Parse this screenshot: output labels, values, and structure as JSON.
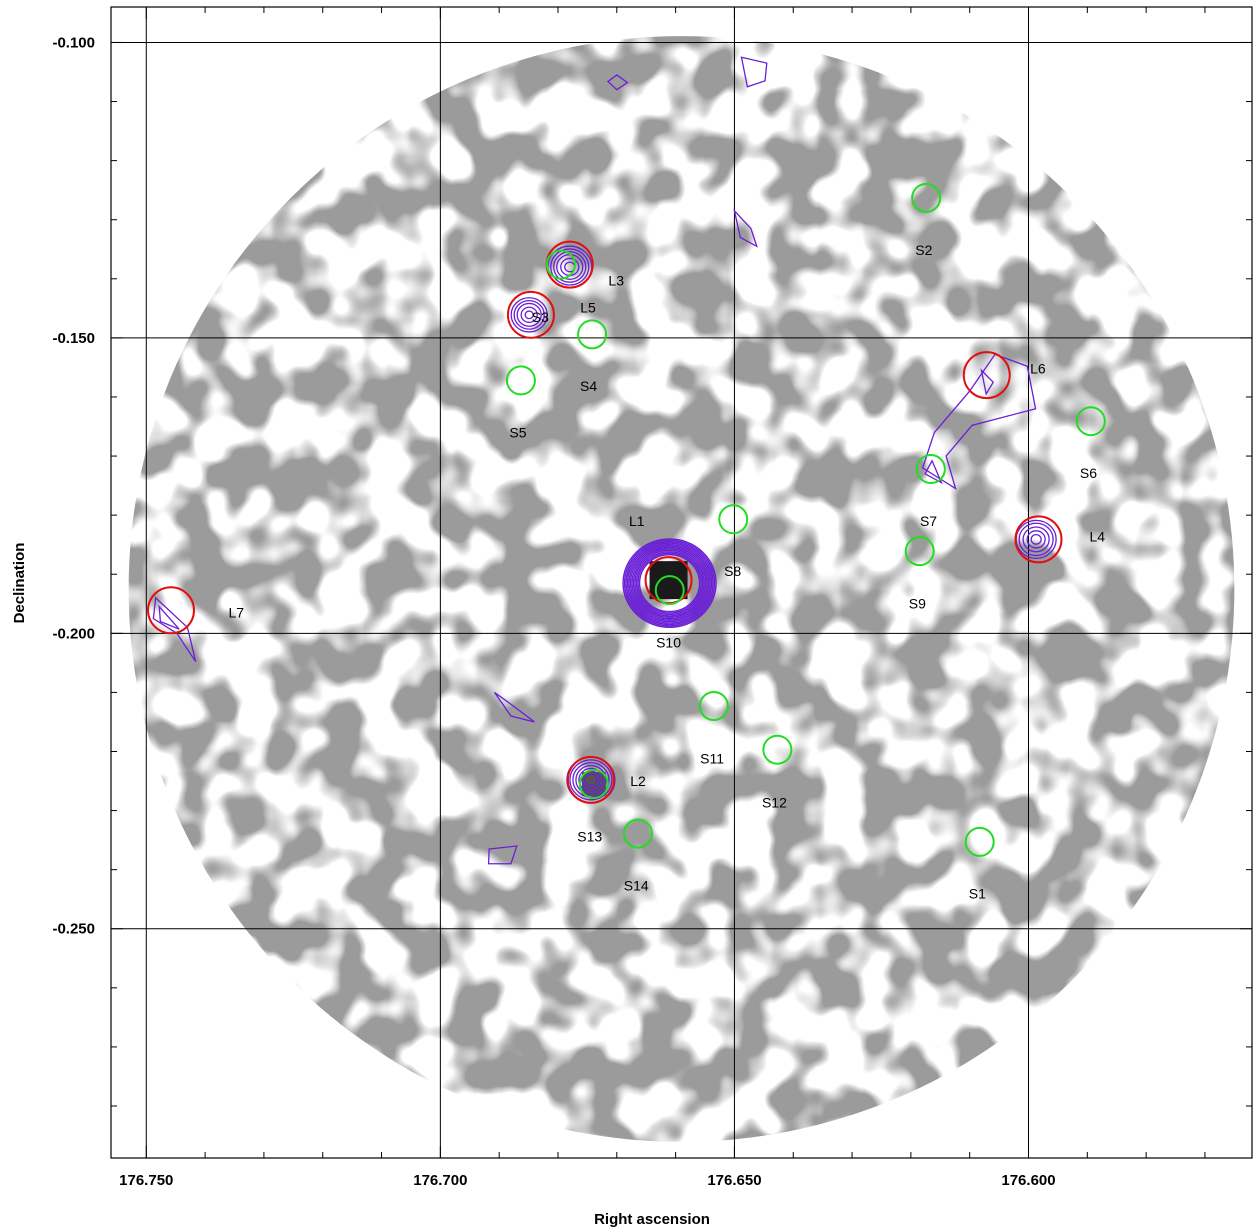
{
  "chart_data": {
    "type": "scatter",
    "title": "",
    "xlabel": "Right ascension",
    "ylabel": "Declination",
    "xlim": [
      176.756,
      176.562
    ],
    "ylim": [
      -0.2888,
      -0.094
    ],
    "grid": true,
    "x_ticks": [
      176.75,
      176.7,
      176.65,
      176.6
    ],
    "x_tick_labels": [
      "176.750",
      "176.700",
      "176.650",
      "176.600"
    ],
    "y_ticks": [
      -0.1,
      -0.15,
      -0.2,
      -0.25
    ],
    "y_tick_labels": [
      "-0.100",
      "-0.150",
      "-0.200",
      "-0.250"
    ],
    "field_circle": {
      "center_ra": 176.659,
      "center_dec": -0.1925,
      "radius_deg": 0.094
    },
    "colors": {
      "contour": "#6a1fd6",
      "l_sources": "#e01010",
      "s_sources": "#22dd22",
      "background": "#ffffff",
      "noise": "#7a7a7a"
    },
    "series": [
      {
        "name": "L",
        "color": "#e01010",
        "points": [
          {
            "label": "L1",
            "ra": 176.6612,
            "dec": -0.191,
            "label_ra": 176.6666,
            "label_dec": -0.1818
          },
          {
            "label": "L2",
            "ra": 176.6744,
            "dec": -0.2248,
            "label_ra": 176.6664,
            "label_dec": -0.2258
          },
          {
            "label": "L3",
            "ra": 176.678,
            "dec": -0.1376,
            "label_ra": 176.6701,
            "label_dec": -0.1411
          },
          {
            "label": "L4",
            "ra": 176.5983,
            "dec": -0.1841,
            "label_ra": 176.5883,
            "label_dec": -0.1845
          },
          {
            "label": "L5",
            "ra": 176.6846,
            "dec": -0.1461,
            "label_ra": 176.6749,
            "label_dec": -0.1457
          },
          {
            "label": "L6",
            "ra": 176.6071,
            "dec": -0.1563,
            "label_ra": 176.5984,
            "label_dec": -0.156
          },
          {
            "label": "L7",
            "ra": 176.7458,
            "dec": -0.1961,
            "label_ra": 176.7347,
            "label_dec": -0.1973
          }
        ]
      },
      {
        "name": "S",
        "color": "#22dd22",
        "points": [
          {
            "label": "S1",
            "ra": 176.6083,
            "dec": -0.2353,
            "label_ra": 176.6087,
            "label_dec": -0.2449
          },
          {
            "label": "S2",
            "ra": 176.6174,
            "dec": -0.1263,
            "label_ra": 176.6178,
            "label_dec": -0.136
          },
          {
            "label": "S3",
            "ra": 176.6795,
            "dec": -0.1376,
            "label_ra": 176.683,
            "label_dec": -0.1473
          },
          {
            "label": "S4",
            "ra": 176.6742,
            "dec": -0.1494,
            "label_ra": 176.6748,
            "label_dec": -0.159
          },
          {
            "label": "S5",
            "ra": 176.6863,
            "dec": -0.1572,
            "label_ra": 176.6868,
            "label_dec": -0.1669
          },
          {
            "label": "S6",
            "ra": 176.5894,
            "dec": -0.1641,
            "label_ra": 176.5898,
            "label_dec": -0.1737
          },
          {
            "label": "S7",
            "ra": 176.6166,
            "dec": -0.1722,
            "label_ra": 176.617,
            "label_dec": -0.1818
          },
          {
            "label": "S8",
            "ra": 176.6502,
            "dec": -0.1807,
            "label_ra": 176.6503,
            "label_dec": -0.1903
          },
          {
            "label": "S9",
            "ra": 176.6185,
            "dec": -0.1861,
            "label_ra": 176.6189,
            "label_dec": -0.1958
          },
          {
            "label": "S10",
            "ra": 176.661,
            "dec": -0.1927,
            "label_ra": 176.6612,
            "label_dec": -0.2024
          },
          {
            "label": "S11",
            "ra": 176.6535,
            "dec": -0.2123,
            "label_ra": 176.6538,
            "label_dec": -0.222
          },
          {
            "label": "S12",
            "ra": 176.6427,
            "dec": -0.2197,
            "label_ra": 176.6432,
            "label_dec": -0.2295
          },
          {
            "label": "S13",
            "ra": 176.6739,
            "dec": -0.2255,
            "label_ra": 176.6746,
            "label_dec": -0.2352
          },
          {
            "label": "S14",
            "ra": 176.6664,
            "dec": -0.2339,
            "label_ra": 176.6667,
            "label_dec": -0.2435
          }
        ]
      }
    ]
  }
}
